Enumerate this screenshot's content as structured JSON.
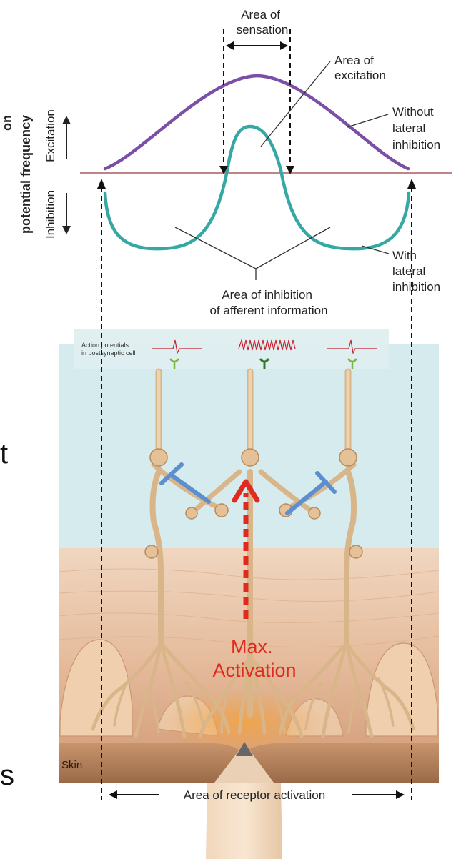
{
  "labels": {
    "area_of_sensation": [
      "Area of",
      "sensation"
    ],
    "area_of_excitation": [
      "Area of",
      "excitation"
    ],
    "without_lateral_inhibition": [
      "Without",
      "lateral",
      "inhibition"
    ],
    "with_lateral_inhibition": [
      "With",
      "lateral",
      "inhibition"
    ],
    "area_of_inhibition": [
      "Area of inhibition",
      "of afferent information"
    ],
    "y_axis_excitation": "Excitation",
    "y_axis_inhibition": "Inhibition",
    "y_axis_title_cut": "on",
    "y_axis_title": "potential frequency",
    "action_potentials": [
      "Action potentials",
      "in postsynaptic cell"
    ],
    "max_activation": [
      "Max.",
      "Activation"
    ],
    "skin": "Skin",
    "area_of_receptor_activation": "Area of receptor activation",
    "left_edge_t": "t",
    "left_edge_s": "s"
  },
  "colors": {
    "without_curve": "#7b4fa6",
    "with_curve": "#35a8a3",
    "baseline": "#9b3a3a",
    "inhibitory_synapse": "#5b8fd0",
    "activation_arrow": "#e02a20",
    "neuron": "#d9b58a",
    "upper_panel": "#d6ebee",
    "skin": "#e9c3a5",
    "spike": "#c81f2a",
    "synapse_icon": "#78b83c"
  }
}
